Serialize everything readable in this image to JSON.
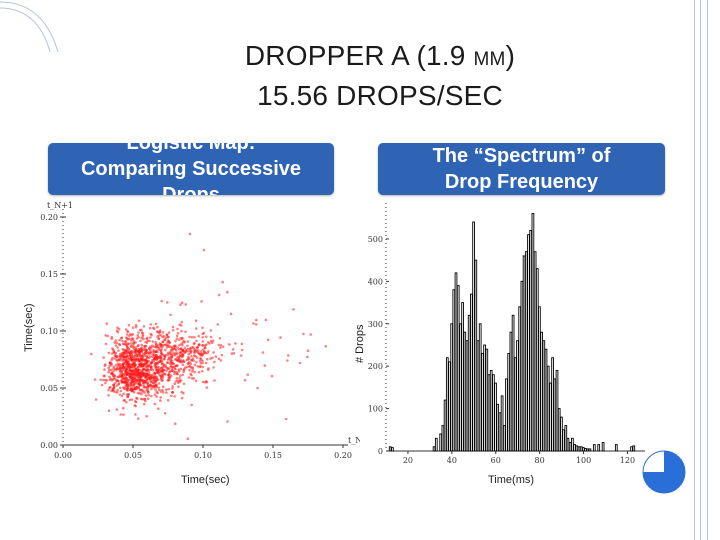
{
  "slide": {
    "title_line1_prefix": "DROPPER A (1.9 ",
    "title_line1_unit": "MM",
    "title_line1_suffix": ")",
    "title_line2": "15.56 DROPS/SEC"
  },
  "left_box": {
    "line1": "Logistic Map:",
    "line2": "Comparing Successive",
    "line3": "Drops"
  },
  "right_box": {
    "line1": "The “Spectrum” of",
    "line2": "Drop Frequency"
  },
  "left_axes": {
    "ylabel": "Time(sec)",
    "xlabel": "Time(sec)",
    "y_axis_name": "t_N+1",
    "x_axis_name": "t_N"
  },
  "right_axes": {
    "ylabel": "# Drops",
    "xlabel": "Time(ms)"
  },
  "colors": {
    "box": "#2f63b3",
    "scatter": "#ff1a1a",
    "bars": "#000000",
    "accent": "#2a6ed8"
  },
  "chart_data": [
    {
      "type": "scatter",
      "title": "Logistic Map: Comparing Successive Drops",
      "xlabel": "Time(sec)",
      "ylabel": "Time(sec)",
      "x_axis_name": "t_N",
      "y_axis_name": "t_N+1",
      "xlim": [
        0.0,
        0.2
      ],
      "ylim": [
        0.0,
        0.2
      ],
      "x_ticks": [
        0.0,
        0.05,
        0.1,
        0.15,
        0.2
      ],
      "x_tick_labels": [
        "0.00",
        "0.05",
        "0.10",
        "0.15",
        "0.20"
      ],
      "y_ticks": [
        0.0,
        0.05,
        0.1,
        0.15,
        0.2
      ],
      "y_tick_labels": [
        "0.00",
        "0.05",
        "0.10",
        "0.15",
        "0.20"
      ],
      "grid": false,
      "clusters": [
        {
          "cx": 0.048,
          "cy": 0.07,
          "sx": 0.008,
          "sy": 0.014,
          "n": 520
        },
        {
          "cx": 0.076,
          "cy": 0.079,
          "sx": 0.016,
          "sy": 0.012,
          "n": 480
        },
        {
          "cx": 0.058,
          "cy": 0.058,
          "sx": 0.013,
          "sy": 0.009,
          "n": 330
        },
        {
          "cx": 0.095,
          "cy": 0.085,
          "sx": 0.025,
          "sy": 0.03,
          "n": 70
        },
        {
          "cx": 0.16,
          "cy": 0.085,
          "sx": 0.02,
          "sy": 0.015,
          "n": 18
        }
      ]
    },
    {
      "type": "bar",
      "title": "The “Spectrum” of Drop Frequency",
      "xlabel": "Time(ms)",
      "ylabel": "# Drops",
      "xlim": [
        10,
        128
      ],
      "ylim": [
        0,
        580
      ],
      "x_ticks": [
        20,
        40,
        60,
        80,
        100,
        120
      ],
      "x_tick_labels": [
        "20",
        "40",
        "60",
        "80",
        "100",
        "120"
      ],
      "y_ticks": [
        0,
        100,
        200,
        300,
        400,
        500
      ],
      "y_tick_labels": [
        "0",
        "100",
        "200",
        "300",
        "400",
        "500"
      ],
      "grid": false,
      "bin_width": 1,
      "x": [
        12,
        13,
        32,
        33,
        35,
        36,
        37,
        38,
        39,
        40,
        41,
        42,
        43,
        44,
        45,
        46,
        47,
        48,
        49,
        50,
        51,
        52,
        53,
        54,
        55,
        56,
        57,
        58,
        59,
        60,
        61,
        62,
        63,
        64,
        65,
        66,
        67,
        68,
        69,
        70,
        71,
        72,
        73,
        74,
        75,
        76,
        77,
        78,
        79,
        80,
        81,
        82,
        83,
        84,
        85,
        86,
        87,
        88,
        89,
        90,
        91,
        92,
        93,
        94,
        95,
        96,
        97,
        98,
        99,
        100,
        101,
        102,
        103,
        105,
        107,
        109,
        115,
        122,
        123
      ],
      "values": [
        10,
        8,
        10,
        30,
        40,
        60,
        120,
        220,
        210,
        300,
        380,
        420,
        390,
        300,
        350,
        280,
        260,
        320,
        370,
        540,
        450,
        260,
        300,
        230,
        250,
        240,
        180,
        190,
        180,
        160,
        110,
        90,
        130,
        60,
        170,
        230,
        280,
        320,
        220,
        260,
        340,
        400,
        460,
        470,
        510,
        520,
        560,
        470,
        430,
        340,
        280,
        260,
        240,
        200,
        160,
        220,
        170,
        190,
        100,
        80,
        50,
        60,
        30,
        20,
        30,
        15,
        12,
        10,
        10,
        8,
        6,
        5,
        5,
        15,
        15,
        20,
        15,
        10,
        12
      ]
    }
  ]
}
